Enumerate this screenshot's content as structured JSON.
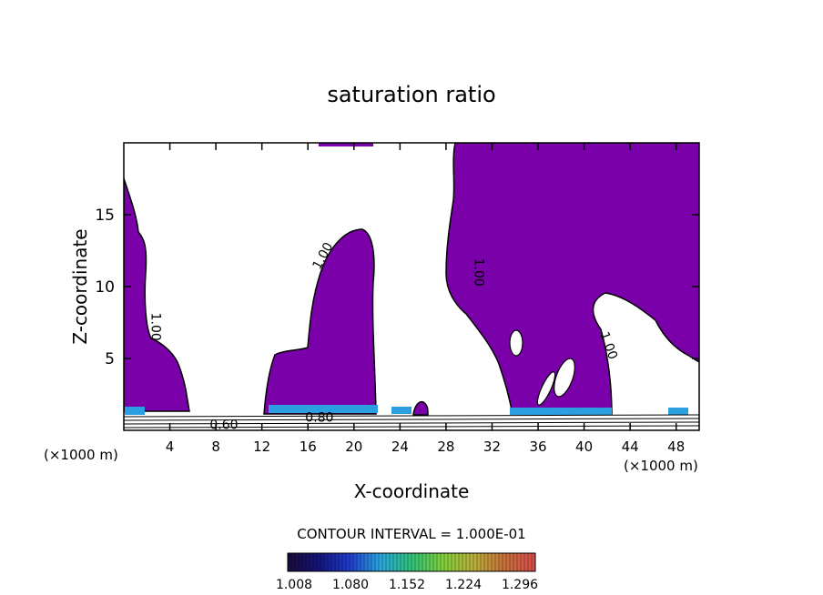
{
  "chart_data": {
    "type": "contour",
    "title": "saturation ratio",
    "xlabel": "X-coordinate",
    "ylabel": "Z-coordinate",
    "x_unit": "(×1000 m)",
    "xlim": [
      0,
      50
    ],
    "ylim": [
      0,
      20
    ],
    "x_ticks": [
      4,
      8,
      12,
      16,
      20,
      24,
      28,
      32,
      36,
      40,
      44,
      48
    ],
    "y_ticks": [
      5,
      10,
      15
    ],
    "contour_labels": [
      {
        "text": "1.00",
        "x": 2.4,
        "y": 7.2,
        "rotate": 90
      },
      {
        "text": "1.00",
        "x": 17.6,
        "y": 12.0,
        "rotate": -62
      },
      {
        "text": "1.00",
        "x": 30.5,
        "y": 11.0,
        "rotate": 90
      },
      {
        "text": "1.00",
        "x": 41.8,
        "y": 5.8,
        "rotate": 70
      },
      {
        "text": "0.60",
        "x": 8.7,
        "y": 0.1,
        "rotate": 0
      },
      {
        "text": "0.80",
        "x": 17.0,
        "y": 0.6,
        "rotate": 0
      }
    ],
    "contour_interval_text": "CONTOUR INTERVAL = 1.000E-01",
    "colorbar": {
      "ticks": [
        "1.008",
        "1.080",
        "1.152",
        "1.224",
        "1.296"
      ],
      "colors": [
        "#1a0a3a",
        "#14147a",
        "#1e3ccc",
        "#2aa6e0",
        "#2fc27a",
        "#7fd03c",
        "#b9b03a",
        "#c8703a",
        "#d84a4a"
      ]
    },
    "fill_color": "#7a00aa",
    "grid": false,
    "legend": "none"
  }
}
